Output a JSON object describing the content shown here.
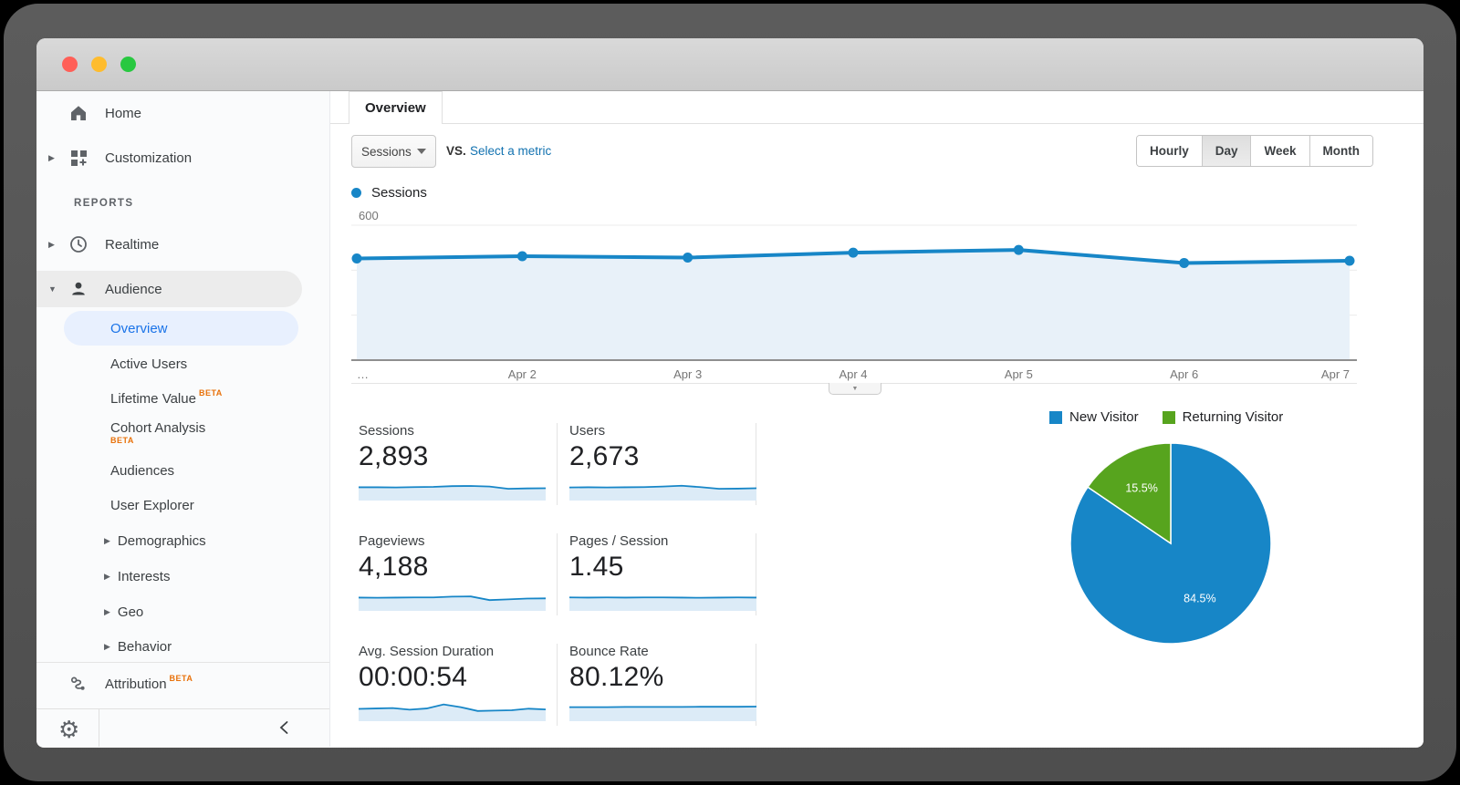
{
  "window": {
    "controls": {
      "close_color": "#ff5f57",
      "minimize_color": "#febc2e",
      "zoom_color": "#28c840"
    }
  },
  "sidebar": {
    "home": "Home",
    "customization": "Customization",
    "reports_header": "REPORTS",
    "realtime": "Realtime",
    "audience": "Audience",
    "overview": "Overview",
    "active_users": "Active Users",
    "lifetime_value": "Lifetime Value",
    "cohort_analysis": "Cohort Analysis",
    "audiences": "Audiences",
    "user_explorer": "User Explorer",
    "demographics": "Demographics",
    "interests": "Interests",
    "geo": "Geo",
    "behavior": "Behavior",
    "attribution": "Attribution",
    "beta_label": "BETA",
    "accent_selected": "#1a73e8"
  },
  "main": {
    "tab": "Overview",
    "metric_selector_value": "Sessions",
    "vs_label": "VS.",
    "select_metric_link": "Select a metric",
    "granularity": {
      "options": [
        "Hourly",
        "Day",
        "Week",
        "Month"
      ],
      "selected": "Day"
    }
  },
  "metrics": [
    {
      "label": "Sessions",
      "value": "2,893",
      "spark": [
        5.5,
        5.5,
        5.4,
        5.6,
        5.7,
        6.1,
        6.2,
        5.9,
        4.7,
        4.9,
        5.0
      ]
    },
    {
      "label": "Users",
      "value": "2,673",
      "spark": [
        5.4,
        5.5,
        5.4,
        5.5,
        5.6,
        5.9,
        6.3,
        5.6,
        4.7,
        4.8,
        5.0
      ]
    },
    {
      "label": "Pageviews",
      "value": "4,188",
      "spark": [
        5.5,
        5.4,
        5.5,
        5.6,
        5.6,
        6.0,
        6.1,
        4.2,
        4.6,
        5.0,
        5.1
      ]
    },
    {
      "label": "Pages / Session",
      "value": "1.45",
      "spark": [
        5.6,
        5.5,
        5.6,
        5.5,
        5.6,
        5.6,
        5.5,
        5.4,
        5.5,
        5.6,
        5.5
      ]
    },
    {
      "label": "Avg. Session Duration",
      "value": "00:00:54",
      "spark": [
        5.0,
        5.2,
        5.4,
        4.6,
        5.2,
        7.3,
        5.9,
        3.9,
        4.1,
        4.3,
        5.1,
        4.7
      ]
    },
    {
      "label": "Bounce Rate",
      "value": "80.12%",
      "spark": [
        5.9,
        5.9,
        5.9,
        6.0,
        6.0,
        6.0,
        6.0,
        6.1,
        6.1,
        6.1,
        6.2
      ]
    }
  ],
  "chart_data": [
    {
      "type": "line",
      "legend": "Sessions",
      "x": [
        "…",
        "Apr 2",
        "Apr 3",
        "Apr 4",
        "Apr 5",
        "Apr 6",
        "Apr 7"
      ],
      "values": [
        452,
        462,
        456,
        478,
        490,
        432,
        442
      ],
      "ylim": [
        0,
        600
      ],
      "yticks": [
        200,
        400,
        600
      ],
      "grid": true,
      "line_color": "#1786c7",
      "fill_color": "#e8f1f9",
      "axis_color": "#8f8f8f",
      "tick_color": "#757575"
    },
    {
      "type": "pie",
      "legend_position": "top",
      "series": [
        {
          "name": "New Visitor",
          "value": 84.5,
          "label": "84.5%",
          "color": "#1786c7"
        },
        {
          "name": "Returning Visitor",
          "value": 15.5,
          "label": "15.5%",
          "color": "#57a41e"
        }
      ]
    }
  ]
}
